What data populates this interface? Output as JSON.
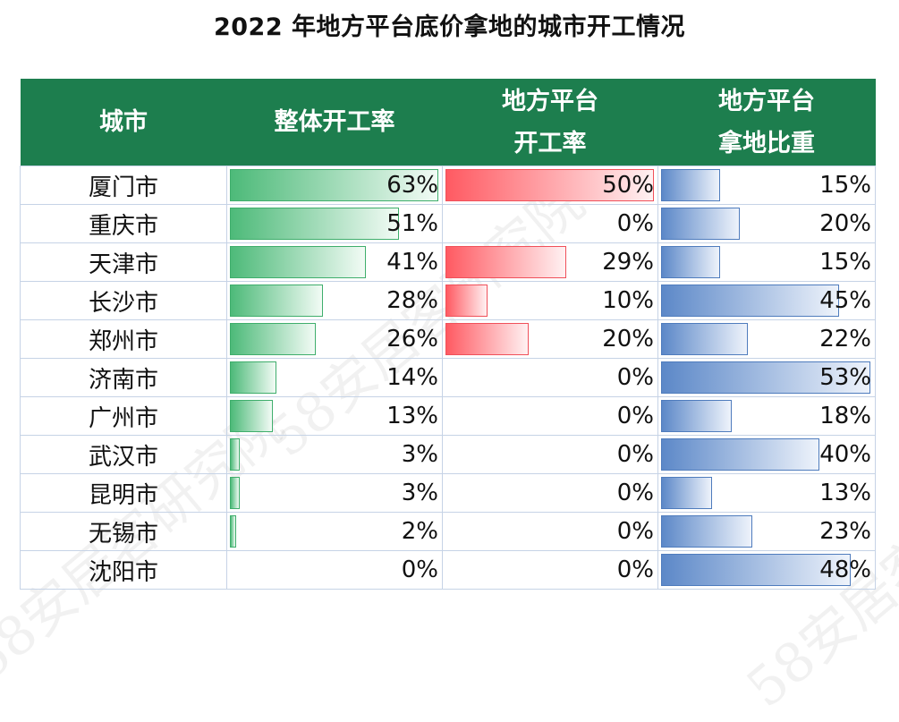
{
  "title": "2022 年地方平台底价拿地的城市开工情况",
  "watermark": "58安居客研究院",
  "colors": {
    "header": "#1d7e4e",
    "green": "#4dba79",
    "red": "#ff5a62",
    "blue": "#5c88c8"
  },
  "table": {
    "headers": [
      {
        "line1": "城市",
        "line2": ""
      },
      {
        "line1": "整体开工率",
        "line2": ""
      },
      {
        "line1": "地方平台",
        "line2": "开工率"
      },
      {
        "line1": "地方平台",
        "line2": "拿地比重"
      }
    ],
    "rows": [
      {
        "city": "厦门市",
        "overall": "63%",
        "platform": "50%",
        "share": "15%"
      },
      {
        "city": "重庆市",
        "overall": "51%",
        "platform": "0%",
        "share": "20%"
      },
      {
        "city": "天津市",
        "overall": "41%",
        "platform": "29%",
        "share": "15%"
      },
      {
        "city": "长沙市",
        "overall": "28%",
        "platform": "10%",
        "share": "45%"
      },
      {
        "city": "郑州市",
        "overall": "26%",
        "platform": "20%",
        "share": "22%"
      },
      {
        "city": "济南市",
        "overall": "14%",
        "platform": "0%",
        "share": "53%"
      },
      {
        "city": "广州市",
        "overall": "13%",
        "platform": "0%",
        "share": "18%"
      },
      {
        "city": "武汉市",
        "overall": "3%",
        "platform": "0%",
        "share": "40%"
      },
      {
        "city": "昆明市",
        "overall": "3%",
        "platform": "0%",
        "share": "13%"
      },
      {
        "city": "无锡市",
        "overall": "2%",
        "platform": "0%",
        "share": "23%"
      },
      {
        "city": "沈阳市",
        "overall": "0%",
        "platform": "0%",
        "share": "48%"
      }
    ]
  },
  "chart_data": {
    "type": "table",
    "title": "2022 年地方平台底价拿地的城市开工情况",
    "categories": [
      "厦门市",
      "重庆市",
      "天津市",
      "长沙市",
      "郑州市",
      "济南市",
      "广州市",
      "武汉市",
      "昆明市",
      "无锡市",
      "沈阳市"
    ],
    "series": [
      {
        "name": "整体开工率",
        "values": [
          63,
          51,
          41,
          28,
          26,
          14,
          13,
          3,
          3,
          2,
          0
        ],
        "color": "green"
      },
      {
        "name": "地方平台开工率",
        "values": [
          50,
          0,
          29,
          10,
          20,
          0,
          0,
          0,
          0,
          0,
          0
        ],
        "color": "red"
      },
      {
        "name": "地方平台拿地比重",
        "values": [
          15,
          20,
          15,
          45,
          22,
          53,
          18,
          40,
          13,
          23,
          48
        ],
        "color": "blue"
      }
    ],
    "unit": "%"
  }
}
